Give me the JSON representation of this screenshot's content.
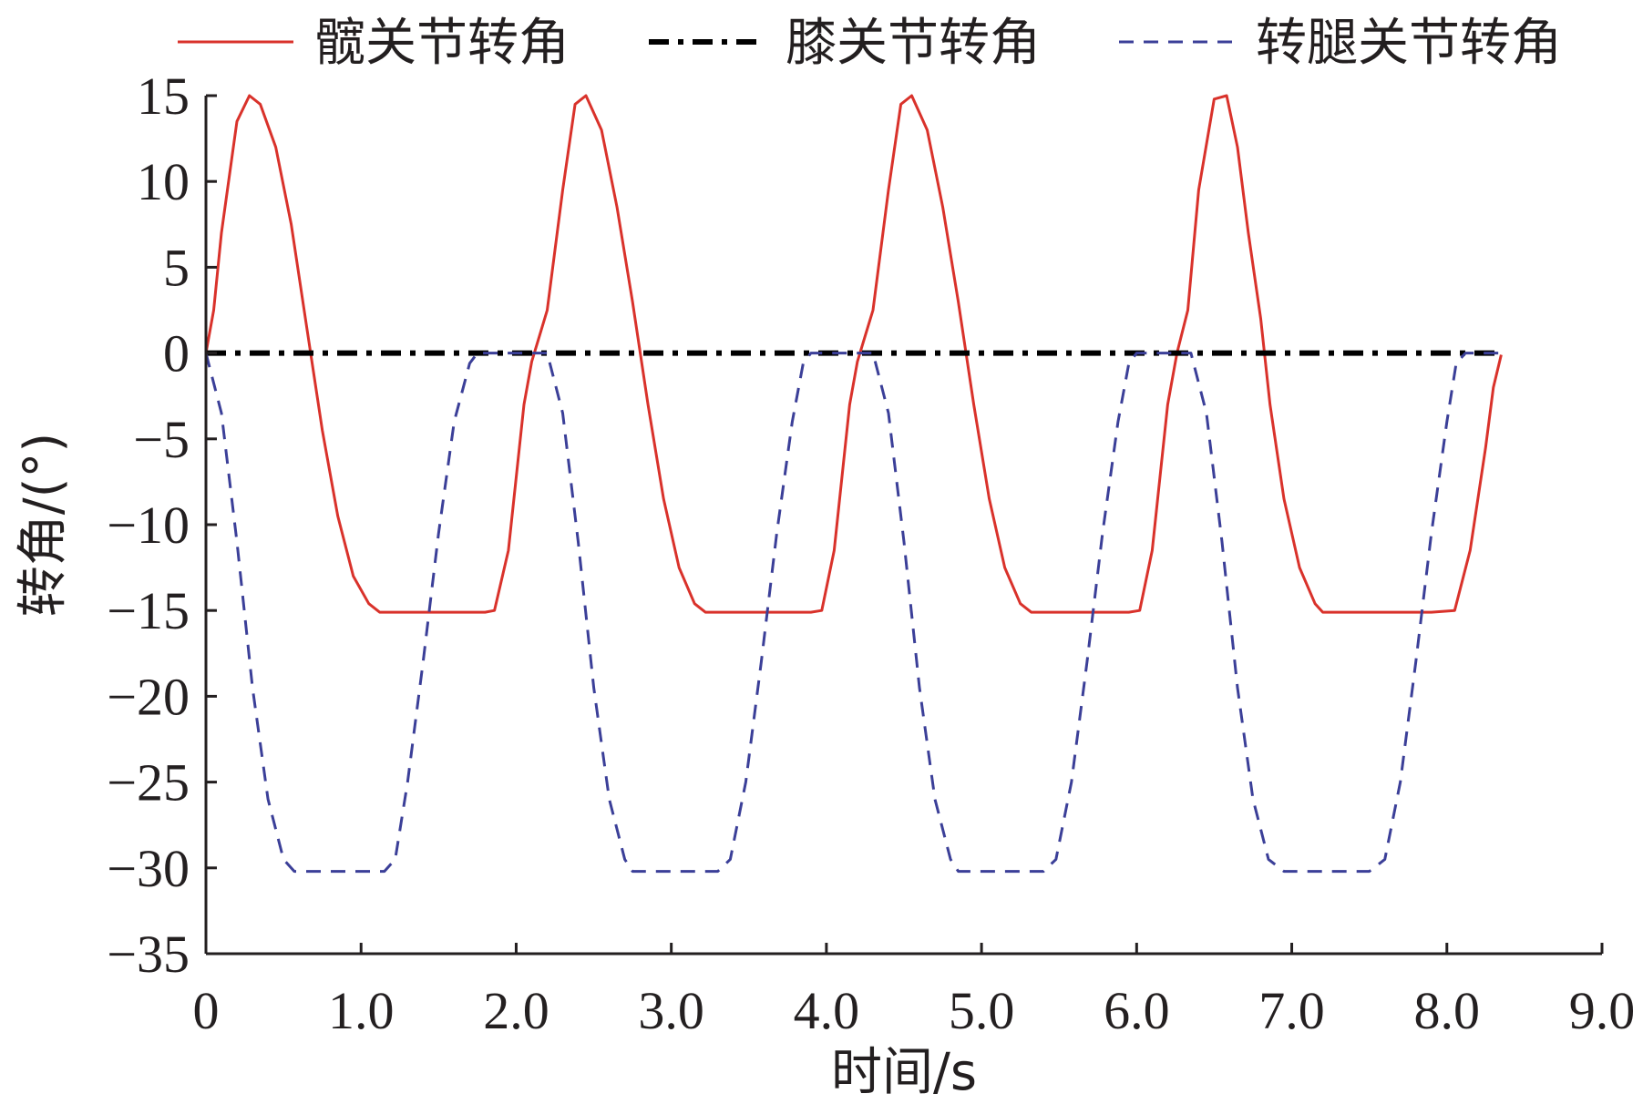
{
  "chart_data": {
    "type": "line",
    "title": "",
    "xlabel": "时间/s",
    "ylabel": "转角/(°)",
    "xlim": [
      0,
      9.0
    ],
    "ylim": [
      -35,
      15
    ],
    "x_ticks": [
      0,
      1.0,
      2.0,
      3.0,
      4.0,
      5.0,
      6.0,
      7.0,
      8.0,
      9.0
    ],
    "x_tick_labels": [
      "0",
      "1.0",
      "2.0",
      "3.0",
      "4.0",
      "5.0",
      "6.0",
      "7.0",
      "8.0",
      "9.0"
    ],
    "y_ticks": [
      15,
      10,
      5,
      0,
      -5,
      -10,
      -15,
      -20,
      -25,
      -30,
      -35
    ],
    "y_tick_labels": [
      "15",
      "10",
      "5",
      "0",
      "−5",
      "−10",
      "−15",
      "−20",
      "−25",
      "−30",
      "−35"
    ],
    "grid": false,
    "legend_position": "top",
    "series": [
      {
        "name": "髋关节转角",
        "color": "#d9322b",
        "line_style": "solid",
        "x": [
          0.0,
          0.05,
          0.1,
          0.2,
          0.28,
          0.35,
          0.45,
          0.55,
          0.65,
          0.75,
          0.85,
          0.95,
          1.05,
          1.12,
          1.18,
          1.3,
          1.5,
          1.7,
          1.8,
          1.86,
          1.95,
          2.05,
          2.1,
          2.15,
          2.2,
          2.3,
          2.38,
          2.45,
          2.55,
          2.65,
          2.75,
          2.85,
          2.95,
          3.05,
          3.15,
          3.22,
          3.28,
          3.5,
          3.7,
          3.9,
          3.97,
          4.05,
          4.15,
          4.2,
          4.25,
          4.3,
          4.4,
          4.48,
          4.55,
          4.65,
          4.75,
          4.85,
          4.95,
          5.05,
          5.15,
          5.25,
          5.32,
          5.38,
          5.6,
          5.8,
          5.95,
          6.02,
          6.1,
          6.2,
          6.26,
          6.33,
          6.4,
          6.5,
          6.58,
          6.65,
          6.72,
          6.8,
          6.86,
          6.95,
          7.05,
          7.15,
          7.2,
          7.3,
          7.5,
          7.7,
          7.9,
          8.05,
          8.15,
          8.25,
          8.3,
          8.35
        ],
        "y": [
          0.0,
          2.5,
          7.0,
          13.5,
          15.0,
          14.5,
          12.0,
          7.5,
          1.5,
          -4.5,
          -9.5,
          -13.0,
          -14.6,
          -15.1,
          -15.1,
          -15.1,
          -15.1,
          -15.1,
          -15.1,
          -15.0,
          -11.5,
          -3.0,
          -0.5,
          1.0,
          2.5,
          9.5,
          14.5,
          15.0,
          13.0,
          8.5,
          3.0,
          -3.0,
          -8.5,
          -12.5,
          -14.6,
          -15.1,
          -15.1,
          -15.1,
          -15.1,
          -15.1,
          -15.0,
          -11.5,
          -3.0,
          -0.5,
          1.0,
          2.5,
          9.5,
          14.5,
          15.0,
          13.0,
          8.5,
          3.0,
          -3.0,
          -8.5,
          -12.5,
          -14.6,
          -15.1,
          -15.1,
          -15.1,
          -15.1,
          -15.1,
          -15.0,
          -11.5,
          -3.0,
          0.0,
          2.5,
          9.5,
          14.8,
          15.0,
          12.0,
          7.0,
          2.0,
          -3.0,
          -8.5,
          -12.5,
          -14.6,
          -15.1,
          -15.1,
          -15.1,
          -15.1,
          -15.1,
          -15.0,
          -11.5,
          -5.5,
          -2.0,
          -0.1
        ]
      },
      {
        "name": "膝关节转角",
        "color": "#000000",
        "line_style": "dashdot",
        "x": [
          0.0,
          8.35
        ],
        "y": [
          0.0,
          0.0
        ]
      },
      {
        "name": "转腿关节转角",
        "color": "#3b3f98",
        "line_style": "dashed",
        "x": [
          0.0,
          0.1,
          0.2,
          0.3,
          0.4,
          0.5,
          0.57,
          0.6,
          0.8,
          1.0,
          1.15,
          1.22,
          1.3,
          1.4,
          1.5,
          1.6,
          1.7,
          1.75,
          1.8,
          2.0,
          2.2,
          2.3,
          2.4,
          2.5,
          2.6,
          2.7,
          2.75,
          2.85,
          3.1,
          3.3,
          3.38,
          3.48,
          3.58,
          3.68,
          3.78,
          3.85,
          3.9,
          4.1,
          4.3,
          4.4,
          4.5,
          4.6,
          4.7,
          4.8,
          4.85,
          4.95,
          5.2,
          5.4,
          5.48,
          5.58,
          5.68,
          5.78,
          5.88,
          5.95,
          6.0,
          6.2,
          6.35,
          6.45,
          6.55,
          6.65,
          6.75,
          6.85,
          6.95,
          7.05,
          7.3,
          7.5,
          7.6,
          7.7,
          7.8,
          7.9,
          8.0,
          8.06,
          8.12,
          8.35
        ],
        "y": [
          0.0,
          -3.5,
          -11.0,
          -19.5,
          -26.0,
          -29.5,
          -30.2,
          -30.2,
          -30.2,
          -30.2,
          -30.2,
          -29.5,
          -25.0,
          -18.0,
          -10.5,
          -4.0,
          -0.6,
          0.0,
          0.0,
          0.0,
          0.0,
          -3.5,
          -11.0,
          -19.5,
          -26.0,
          -29.5,
          -30.2,
          -30.2,
          -30.2,
          -30.2,
          -29.5,
          -25.0,
          -18.0,
          -10.5,
          -4.0,
          -0.6,
          0.0,
          0.0,
          0.0,
          -3.5,
          -11.0,
          -19.5,
          -26.0,
          -29.5,
          -30.2,
          -30.2,
          -30.2,
          -30.2,
          -29.5,
          -25.0,
          -18.0,
          -10.5,
          -4.0,
          -0.6,
          0.0,
          0.0,
          0.0,
          -3.5,
          -11.0,
          -19.5,
          -26.0,
          -29.5,
          -30.2,
          -30.2,
          -30.2,
          -30.2,
          -29.5,
          -25.0,
          -18.0,
          -10.5,
          -4.0,
          -0.6,
          0.0,
          0.0
        ]
      }
    ]
  }
}
